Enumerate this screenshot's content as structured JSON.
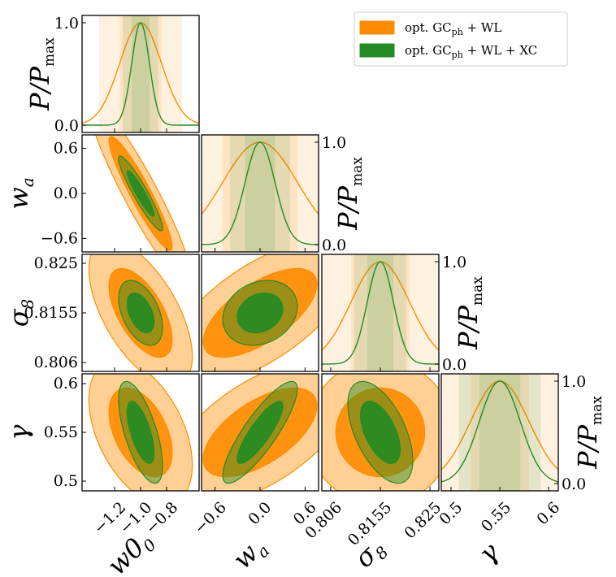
{
  "chart_data": {
    "type": "triangle-contour",
    "title": "",
    "parameters": [
      {
        "key": "w0",
        "label": "w0",
        "sub": "0",
        "fiducial": -1.0,
        "range": [
          -1.45,
          -0.55
        ],
        "ticks": [
          -1.2,
          -1.0,
          -0.8
        ],
        "tick_labels": [
          "−1.2",
          "−1.0",
          "−0.8"
        ]
      },
      {
        "key": "wa",
        "label": "w",
        "sub": "a",
        "fiducial": 0.0,
        "range": [
          -0.78,
          0.78
        ],
        "ticks": [
          -0.6,
          0.0,
          0.6
        ],
        "tick_labels": [
          "−0.6",
          "0.0",
          "0.6"
        ]
      },
      {
        "key": "sigma8",
        "label": "σ",
        "sub": "8",
        "fiducial": 0.8155,
        "range": [
          0.8043,
          0.8267
        ],
        "ticks": [
          0.806,
          0.8155,
          0.825
        ],
        "tick_labels": [
          "0.806",
          "0.8155",
          "0.825"
        ]
      },
      {
        "key": "gamma",
        "label": "γ",
        "sub": "",
        "fiducial": 0.55,
        "range": [
          0.49,
          0.61
        ],
        "ticks": [
          0.5,
          0.55,
          0.6
        ],
        "tick_labels": [
          "0.5",
          "0.55",
          "0.6"
        ]
      }
    ],
    "diagonal_ylabel": "P/P",
    "diagonal_ylabel_sub": "max",
    "diagonal_ticks": [
      0.0,
      1.0
    ],
    "diagonal_tick_labels": [
      "0.0",
      "1.0"
    ],
    "series": [
      {
        "name": "opt. GCph + WL",
        "legend_main": "opt. GC",
        "legend_sub": "ph",
        "legend_rest": " + WL",
        "fill": "#ff8c00",
        "edge": "#ff8c00",
        "sigma": {
          "w0": 0.16,
          "wa": 0.5,
          "sigma8": 0.0056,
          "gamma": 0.03
        },
        "corr": {
          "w0-wa": -0.93,
          "w0-sigma8": -0.6,
          "w0-gamma": -0.45,
          "wa-sigma8": 0.65,
          "wa-gamma": 0.6,
          "sigma8-gamma": 0.0
        }
      },
      {
        "name": "opt. GCph + WL + XC",
        "legend_main": "opt. GC",
        "legend_sub": "ph",
        "legend_rest": " + WL + XC",
        "fill": "#228b22",
        "edge": "#228b22",
        "sigma": {
          "w0": 0.068,
          "wa": 0.2,
          "sigma8": 0.0025,
          "gamma": 0.021
        },
        "corr": {
          "w0-wa": -0.93,
          "w0-sigma8": -0.45,
          "w0-gamma": -0.65,
          "wa-sigma8": 0.2,
          "wa-gamma": 0.85,
          "sigma8-gamma": -0.55
        }
      }
    ]
  }
}
